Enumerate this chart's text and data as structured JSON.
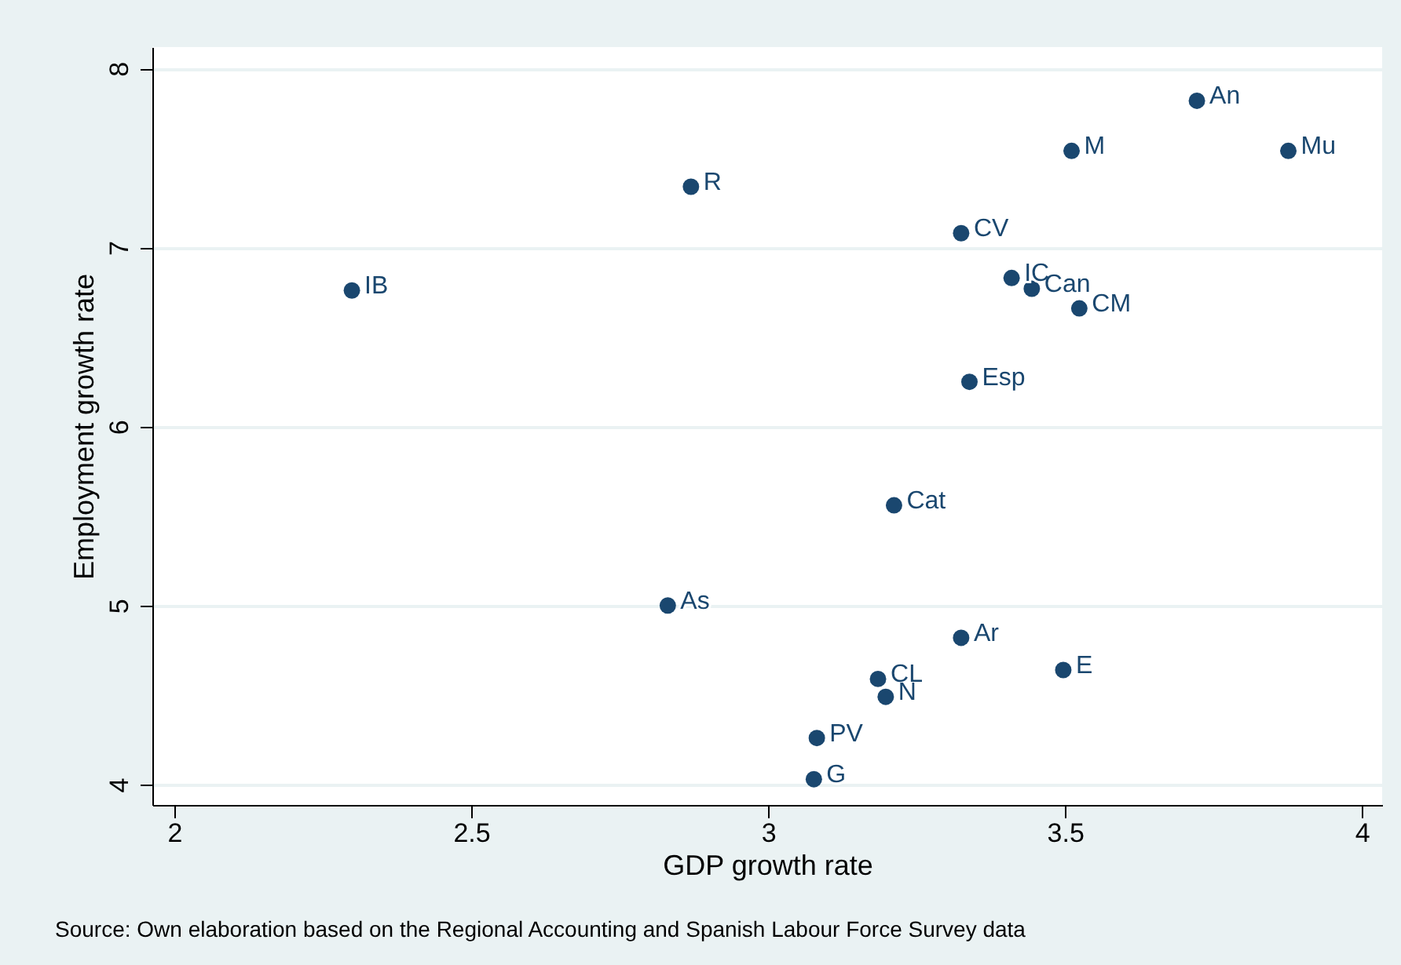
{
  "chart_data": {
    "type": "scatter",
    "xlabel": "GDP growth rate",
    "ylabel": "Employment growth rate",
    "x": [
      3.722,
      3.511,
      3.876,
      2.87,
      3.325,
      2.299,
      3.41,
      3.444,
      3.524,
      3.339,
      3.212,
      2.831,
      3.325,
      3.497,
      3.185,
      3.198,
      3.082,
      3.077
    ],
    "series": [
      {
        "color": "#1a476f",
        "values": [
          7.82,
          7.54,
          7.54,
          7.34,
          7.08,
          6.76,
          6.83,
          6.77,
          6.66,
          6.25,
          5.56,
          5.0,
          4.82,
          4.64,
          4.59,
          4.49,
          4.26,
          4.03
        ]
      }
    ],
    "annotations": [
      {
        "text": "An",
        "x": 3.722,
        "y": 7.82
      },
      {
        "text": "M",
        "x": 3.511,
        "y": 7.54
      },
      {
        "text": "Mu",
        "x": 3.876,
        "y": 7.54
      },
      {
        "text": "R",
        "x": 2.87,
        "y": 7.34
      },
      {
        "text": "CV",
        "x": 3.325,
        "y": 7.08
      },
      {
        "text": "IB",
        "x": 2.299,
        "y": 6.76
      },
      {
        "text": "IC",
        "x": 3.41,
        "y": 6.83
      },
      {
        "text": "Can",
        "x": 3.444,
        "y": 6.77
      },
      {
        "text": "CM",
        "x": 3.524,
        "y": 6.66
      },
      {
        "text": "Esp",
        "x": 3.339,
        "y": 6.25
      },
      {
        "text": "Cat",
        "x": 3.212,
        "y": 5.56
      },
      {
        "text": "As",
        "x": 2.831,
        "y": 5.0
      },
      {
        "text": "Ar",
        "x": 3.325,
        "y": 4.82
      },
      {
        "text": "E",
        "x": 3.497,
        "y": 4.64
      },
      {
        "text": "CL",
        "x": 3.185,
        "y": 4.59
      },
      {
        "text": "N",
        "x": 3.198,
        "y": 4.49
      },
      {
        "text": "PV",
        "x": 3.082,
        "y": 4.26
      },
      {
        "text": "G",
        "x": 3.077,
        "y": 4.03
      },
      "Source: Own elaboration based on the Regional Accounting and Spanish Labour Force Survey data"
    ],
    "xlim": [
      1.963,
      4.034
    ],
    "xticks": [
      2,
      2.5,
      3,
      3.5,
      4
    ],
    "ylim": [
      3.886,
      8.12
    ],
    "yticks": [
      4,
      5,
      6,
      7,
      8
    ],
    "grid": "y",
    "marker": "circle"
  }
}
